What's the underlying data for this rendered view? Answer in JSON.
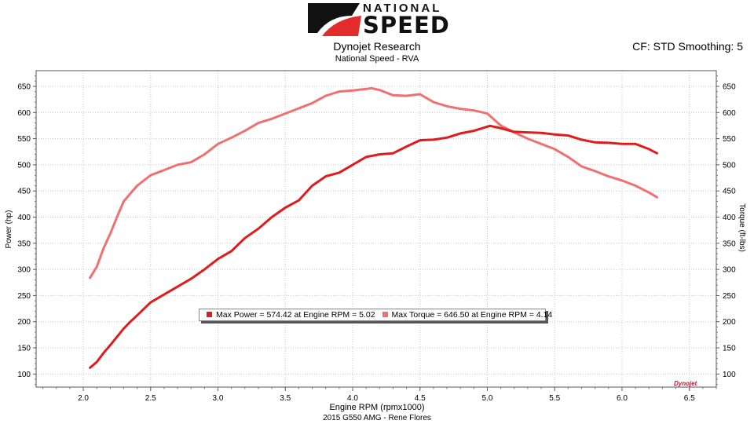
{
  "header": {
    "brand_top": "NATIONAL",
    "brand_bottom": "SPEED",
    "title": "Dynojet Research",
    "subtitle": "National Speed - RVA",
    "cf_text": "CF: STD Smoothing: 5",
    "footer": "2015 G550 AMG - Rene Flores",
    "watermark": "Dynojet"
  },
  "colors": {
    "power": "#e01b1b",
    "torque": "#f07070",
    "logo_red": "#e32b2b",
    "logo_black": "#111111"
  },
  "chart_data": {
    "type": "line",
    "title": "Dynojet Research",
    "subtitle": "National Speed - RVA",
    "xlabel": "Engine RPM (rpmx1000)",
    "ylabel": "Power (hp)",
    "y2label": "Torque (ft-lbs)",
    "xlim": [
      1.65,
      6.7
    ],
    "ylim": [
      75,
      680
    ],
    "y2lim": [
      75,
      680
    ],
    "xticks": [
      "2.0",
      "2.5",
      "3.0",
      "3.5",
      "4.0",
      "4.5",
      "5.0",
      "5.5",
      "6.0",
      "6.5"
    ],
    "yticks": [
      "100",
      "150",
      "200",
      "250",
      "300",
      "350",
      "400",
      "450",
      "500",
      "550",
      "600",
      "650"
    ],
    "grid": true,
    "legend": [
      "Max Power = 574.42 at Engine RPM = 5.02",
      "Max Torque = 646.50 at Engine RPM = 4.14"
    ],
    "series": [
      {
        "name": "Power",
        "axis": "left",
        "x": [
          2.05,
          2.1,
          2.15,
          2.2,
          2.25,
          2.3,
          2.35,
          2.4,
          2.5,
          2.6,
          2.7,
          2.8,
          2.9,
          3.0,
          3.1,
          3.2,
          3.3,
          3.4,
          3.5,
          3.6,
          3.7,
          3.8,
          3.9,
          4.0,
          4.1,
          4.2,
          4.3,
          4.4,
          4.5,
          4.6,
          4.7,
          4.8,
          4.9,
          5.0,
          5.02,
          5.1,
          5.2,
          5.3,
          5.4,
          5.5,
          5.6,
          5.7,
          5.8,
          5.9,
          6.0,
          6.1,
          6.2,
          6.26
        ],
        "values": [
          112,
          123,
          140,
          155,
          171,
          187,
          200,
          212,
          237,
          252,
          267,
          282,
          300,
          320,
          335,
          360,
          378,
          400,
          418,
          432,
          460,
          478,
          485,
          500,
          515,
          520,
          522,
          535,
          547,
          548,
          552,
          560,
          565,
          573,
          574.42,
          570,
          563,
          562,
          561,
          558,
          556,
          548,
          543,
          542,
          540,
          540,
          530,
          522
        ]
      },
      {
        "name": "Torque",
        "axis": "right",
        "x": [
          2.05,
          2.1,
          2.15,
          2.2,
          2.25,
          2.3,
          2.35,
          2.4,
          2.5,
          2.6,
          2.7,
          2.8,
          2.9,
          3.0,
          3.1,
          3.2,
          3.3,
          3.4,
          3.5,
          3.6,
          3.7,
          3.8,
          3.9,
          4.0,
          4.1,
          4.14,
          4.2,
          4.3,
          4.4,
          4.5,
          4.6,
          4.7,
          4.8,
          4.9,
          5.0,
          5.1,
          5.2,
          5.3,
          5.4,
          5.5,
          5.6,
          5.7,
          5.8,
          5.9,
          6.0,
          6.1,
          6.2,
          6.26
        ],
        "values": [
          284,
          305,
          340,
          368,
          400,
          430,
          445,
          460,
          480,
          490,
          500,
          505,
          520,
          540,
          552,
          565,
          580,
          588,
          598,
          608,
          618,
          632,
          640,
          642,
          645,
          646.5,
          643,
          633,
          632,
          635,
          620,
          612,
          607,
          604,
          598,
          575,
          562,
          550,
          540,
          530,
          515,
          497,
          488,
          478,
          470,
          460,
          447,
          438
        ]
      }
    ]
  }
}
